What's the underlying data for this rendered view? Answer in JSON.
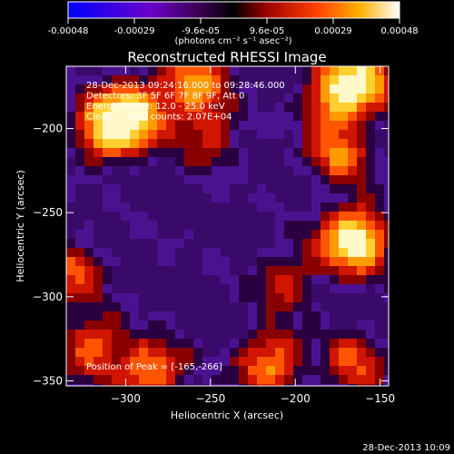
{
  "colorbar": {
    "tick_labels": [
      "-0.00048",
      "-0.00029",
      "-9.6e-05",
      "9.6e-05",
      "0.00029",
      "0.00048"
    ],
    "units_label": "(photons cm⁻² s⁻¹ asec⁻²)",
    "range": [
      -0.00048,
      0.00048
    ]
  },
  "chart_data": {
    "type": "heatmap",
    "title": "Reconstructed RHESSI Image",
    "xlabel": "Heliocentric X (arcsec)",
    "ylabel": "Heliocentric Y (arcsec)",
    "xlim": [
      -335,
      -145
    ],
    "ylim": [
      -353,
      -163
    ],
    "x_ticks": [
      -300,
      -250,
      -200,
      -150
    ],
    "x_tick_labels": [
      "−300",
      "−250",
      "−200",
      "−150"
    ],
    "y_ticks": [
      -350,
      -300,
      -250,
      -200
    ],
    "y_tick_labels": [
      "−350",
      "−300",
      "−250",
      "−200"
    ],
    "annotations": [
      "28-Dec-2013 09:24:16.000 to 09:28:46.000",
      "Detectors: 3F 5F 6F 7F 8F 9F, Att 0",
      "Energy Range: 12.0 - 25.0 keV",
      "Clean     Total counts: 2.07E+04"
    ],
    "peak_label": "Position of Peak = [-165,-266]",
    "peak": [
      -165,
      -266
    ],
    "sources": [
      {
        "x": -165,
        "y": -266,
        "value": 1.0
      },
      {
        "x": -310,
        "y": -200,
        "value": 0.8
      },
      {
        "x": -295,
        "y": -190,
        "value": 0.7
      },
      {
        "x": -260,
        "y": -175,
        "value": 0.6
      },
      {
        "x": -175,
        "y": -180,
        "value": 0.7
      },
      {
        "x": -160,
        "y": -170,
        "value": 0.6
      },
      {
        "x": -175,
        "y": -215,
        "value": 0.5
      },
      {
        "x": -215,
        "y": -340,
        "value": 0.6
      },
      {
        "x": -285,
        "y": -345,
        "value": 0.6
      },
      {
        "x": -320,
        "y": -330,
        "value": 0.5
      },
      {
        "x": -330,
        "y": -285,
        "value": 0.4
      },
      {
        "x": -165,
        "y": -340,
        "value": 0.4
      },
      {
        "x": -250,
        "y": -205,
        "value": 0.35
      },
      {
        "x": -205,
        "y": -290,
        "value": 0.35
      }
    ]
  },
  "timestamp": "28-Dec-2013 10:09"
}
